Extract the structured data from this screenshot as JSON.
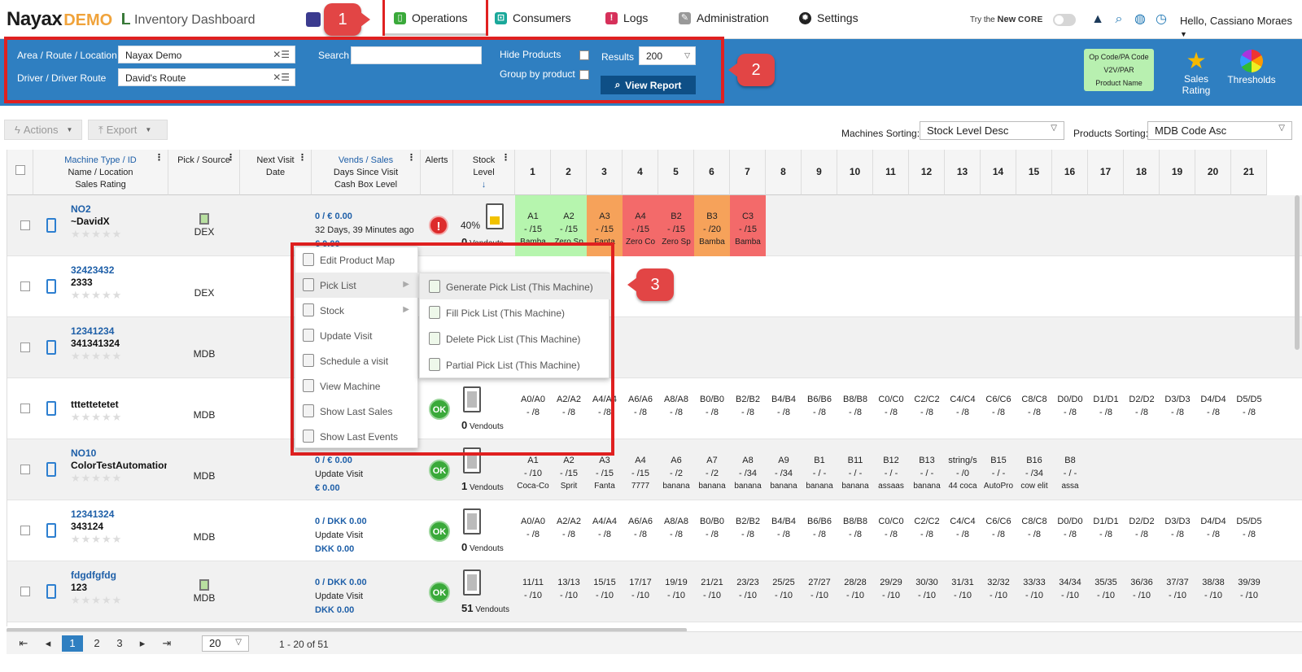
{
  "nav": {
    "logo_main": "Nayax",
    "logo_suffix": "DEMO",
    "page_title": "Inventory Dashboard",
    "tabs": [
      "Operations",
      "Consumers",
      "Logs",
      "Administration",
      "Settings"
    ],
    "try_core_prefix": "Try the",
    "try_core_new": "New",
    "try_core_core": "CORE",
    "greeting": "Hello, Cassiano Moraes"
  },
  "callouts": [
    "1",
    "2",
    "3"
  ],
  "filters": {
    "area_label": "Area / Route / Location",
    "area_value": "Nayax Demo",
    "driver_label": "Driver / Driver Route",
    "driver_value": "David's Route",
    "search_label": "Search",
    "search_value": "",
    "hide_products_label": "Hide Products",
    "group_by_label": "Group by product",
    "results_label": "Results",
    "results_value": "200",
    "view_report": "View Report",
    "opcode_lines": [
      "Op Code/PA Code",
      "V2V/PAR",
      "Product Name"
    ],
    "sales_rating": "Sales Rating",
    "thresholds": "Thresholds"
  },
  "toolbar": {
    "actions": "Actions",
    "export": "Export",
    "machines_sorting_label": "Machines Sorting:",
    "machines_sorting_value": "Stock Level Desc",
    "products_sorting_label": "Products Sorting:",
    "products_sorting_value": "MDB Code Asc"
  },
  "columns": {
    "machine": [
      "Machine Type / ID",
      "Name / Location",
      "Sales Rating"
    ],
    "pick": "Pick / Source",
    "next_visit": [
      "Next Visit",
      "Date"
    ],
    "vends": [
      "Vends / Sales",
      "Days Since Visit",
      "Cash Box Level"
    ],
    "alerts": "Alerts",
    "stock": [
      "Stock",
      "Level"
    ],
    "slots": [
      "1",
      "2",
      "3",
      "4",
      "5",
      "6",
      "7",
      "8",
      "9",
      "10",
      "11",
      "12",
      "13",
      "14",
      "15",
      "16",
      "17",
      "18",
      "19",
      "20",
      "21"
    ]
  },
  "rows": [
    {
      "id": "NO2",
      "name": "~DavidX",
      "source": "DEX",
      "vend1": "0 / € 0.00",
      "vend2": "32 Days, 39 Minutes ago",
      "vend3": "€ 0.00",
      "alert": "!",
      "pct": "40%",
      "vendouts": "0",
      "vendouts_label": "Vendouts",
      "slots": [
        {
          "code": "A1",
          "lvl": "- /15",
          "nm": "Bamba",
          "c": "green"
        },
        {
          "code": "A2",
          "lvl": "- /15",
          "nm": "Zero Sp",
          "c": "green"
        },
        {
          "code": "A3",
          "lvl": "- /15",
          "nm": "Fanta",
          "c": "orange"
        },
        {
          "code": "A4",
          "lvl": "- /15",
          "nm": "Zero Co",
          "c": "red"
        },
        {
          "code": "B2",
          "lvl": "- /15",
          "nm": "Zero Sp",
          "c": "red"
        },
        {
          "code": "B3",
          "lvl": "- /20",
          "nm": "Bamba",
          "c": "orange"
        },
        {
          "code": "C3",
          "lvl": "- /15",
          "nm": "Bamba",
          "c": "red"
        }
      ]
    },
    {
      "id": "32423432",
      "name": "2333",
      "source": "DEX",
      "vend1": "",
      "vend2": "",
      "vend3": "",
      "alert": "",
      "pct": "",
      "vendouts": "",
      "vendouts_label": "",
      "slots": []
    },
    {
      "id": "12341234",
      "name": "341341324",
      "source": "MDB",
      "vend1": "",
      "vend2": "",
      "vend3": "",
      "alert": "",
      "pct": "",
      "vendouts": "",
      "vendouts_label": "",
      "slots": []
    },
    {
      "id": "",
      "name": "tttettetetet",
      "source": "MDB",
      "vend1": "",
      "vend2": "",
      "vend3": "",
      "alert": "OK",
      "pct": "",
      "vendouts": "0",
      "vendouts_label": "Vendouts",
      "slots": [
        {
          "code": "A0/A0",
          "lvl": "- /8",
          "nm": ""
        },
        {
          "code": "A2/A2",
          "lvl": "- /8",
          "nm": ""
        },
        {
          "code": "A4/A4",
          "lvl": "- /8",
          "nm": ""
        },
        {
          "code": "A6/A6",
          "lvl": "- /8",
          "nm": ""
        },
        {
          "code": "A8/A8",
          "lvl": "- /8",
          "nm": ""
        },
        {
          "code": "B0/B0",
          "lvl": "- /8",
          "nm": ""
        },
        {
          "code": "B2/B2",
          "lvl": "- /8",
          "nm": ""
        },
        {
          "code": "B4/B4",
          "lvl": "- /8",
          "nm": ""
        },
        {
          "code": "B6/B6",
          "lvl": "- /8",
          "nm": ""
        },
        {
          "code": "B8/B8",
          "lvl": "- /8",
          "nm": ""
        },
        {
          "code": "C0/C0",
          "lvl": "- /8",
          "nm": ""
        },
        {
          "code": "C2/C2",
          "lvl": "- /8",
          "nm": ""
        },
        {
          "code": "C4/C4",
          "lvl": "- /8",
          "nm": ""
        },
        {
          "code": "C6/C6",
          "lvl": "- /8",
          "nm": ""
        },
        {
          "code": "C8/C8",
          "lvl": "- /8",
          "nm": ""
        },
        {
          "code": "D0/D0",
          "lvl": "- /8",
          "nm": ""
        },
        {
          "code": "D1/D1",
          "lvl": "- /8",
          "nm": ""
        },
        {
          "code": "D2/D2",
          "lvl": "- /8",
          "nm": ""
        },
        {
          "code": "D3/D3",
          "lvl": "- /8",
          "nm": ""
        },
        {
          "code": "D4/D4",
          "lvl": "- /8",
          "nm": ""
        },
        {
          "code": "D5/D5",
          "lvl": "- /8",
          "nm": ""
        }
      ]
    },
    {
      "id": "NO10",
      "name": "ColorTestAutomation",
      "source": "MDB",
      "vend1": "0 / € 0.00",
      "vend2": "Update Visit",
      "vend3": "€ 0.00",
      "alert": "OK",
      "pct": "",
      "vendouts": "1",
      "vendouts_label": "Vendouts",
      "slots": [
        {
          "code": "A1",
          "lvl": "- /10",
          "nm": "Coca-Co"
        },
        {
          "code": "A2",
          "lvl": "- /15",
          "nm": "Sprit"
        },
        {
          "code": "A3",
          "lvl": "- /15",
          "nm": "Fanta"
        },
        {
          "code": "A4",
          "lvl": "- /15",
          "nm": "7777"
        },
        {
          "code": "A6",
          "lvl": "- /2",
          "nm": "banana"
        },
        {
          "code": "A7",
          "lvl": "- /2",
          "nm": "banana"
        },
        {
          "code": "A8",
          "lvl": "- /34",
          "nm": "banana"
        },
        {
          "code": "A9",
          "lvl": "- /34",
          "nm": "banana"
        },
        {
          "code": "B1",
          "lvl": "- / -",
          "nm": "banana"
        },
        {
          "code": "B11",
          "lvl": "- / -",
          "nm": "banana"
        },
        {
          "code": "B12",
          "lvl": "- / -",
          "nm": "assaas"
        },
        {
          "code": "B13",
          "lvl": "- / -",
          "nm": "banana"
        },
        {
          "code": "string/s",
          "lvl": "- /0",
          "nm": "44 coca"
        },
        {
          "code": "B15",
          "lvl": "- / -",
          "nm": "AutoPro"
        },
        {
          "code": "B16",
          "lvl": "- /34",
          "nm": "cow elit"
        },
        {
          "code": "B8",
          "lvl": "- / -",
          "nm": "assa"
        }
      ]
    },
    {
      "id": "12341324",
      "name": "343124",
      "source": "MDB",
      "vend1": "0 / DKK 0.00",
      "vend2": "Update Visit",
      "vend3": "DKK 0.00",
      "alert": "OK",
      "pct": "",
      "vendouts": "0",
      "vendouts_label": "Vendouts",
      "slots": [
        {
          "code": "A0/A0",
          "lvl": "- /8",
          "nm": ""
        },
        {
          "code": "A2/A2",
          "lvl": "- /8",
          "nm": ""
        },
        {
          "code": "A4/A4",
          "lvl": "- /8",
          "nm": ""
        },
        {
          "code": "A6/A6",
          "lvl": "- /8",
          "nm": ""
        },
        {
          "code": "A8/A8",
          "lvl": "- /8",
          "nm": ""
        },
        {
          "code": "B0/B0",
          "lvl": "- /8",
          "nm": ""
        },
        {
          "code": "B2/B2",
          "lvl": "- /8",
          "nm": ""
        },
        {
          "code": "B4/B4",
          "lvl": "- /8",
          "nm": ""
        },
        {
          "code": "B6/B6",
          "lvl": "- /8",
          "nm": ""
        },
        {
          "code": "B8/B8",
          "lvl": "- /8",
          "nm": ""
        },
        {
          "code": "C0/C0",
          "lvl": "- /8",
          "nm": ""
        },
        {
          "code": "C2/C2",
          "lvl": "- /8",
          "nm": ""
        },
        {
          "code": "C4/C4",
          "lvl": "- /8",
          "nm": ""
        },
        {
          "code": "C6/C6",
          "lvl": "- /8",
          "nm": ""
        },
        {
          "code": "C8/C8",
          "lvl": "- /8",
          "nm": ""
        },
        {
          "code": "D0/D0",
          "lvl": "- /8",
          "nm": ""
        },
        {
          "code": "D1/D1",
          "lvl": "- /8",
          "nm": ""
        },
        {
          "code": "D2/D2",
          "lvl": "- /8",
          "nm": ""
        },
        {
          "code": "D3/D3",
          "lvl": "- /8",
          "nm": ""
        },
        {
          "code": "D4/D4",
          "lvl": "- /8",
          "nm": ""
        },
        {
          "code": "D5/D5",
          "lvl": "- /8",
          "nm": ""
        }
      ]
    },
    {
      "id": "fdgdfgfdg",
      "name": "123",
      "source": "MDB",
      "vend1": "0 / DKK 0.00",
      "vend2": "Update Visit",
      "vend3": "DKK 0.00",
      "alert": "OK",
      "pct": "",
      "vendouts": "51",
      "vendouts_label": "Vendouts",
      "slots": [
        {
          "code": "11/11",
          "lvl": "- /10",
          "nm": ""
        },
        {
          "code": "13/13",
          "lvl": "- /10",
          "nm": ""
        },
        {
          "code": "15/15",
          "lvl": "- /10",
          "nm": ""
        },
        {
          "code": "17/17",
          "lvl": "- /10",
          "nm": ""
        },
        {
          "code": "19/19",
          "lvl": "- /10",
          "nm": ""
        },
        {
          "code": "21/21",
          "lvl": "- /10",
          "nm": ""
        },
        {
          "code": "23/23",
          "lvl": "- /10",
          "nm": ""
        },
        {
          "code": "25/25",
          "lvl": "- /10",
          "nm": ""
        },
        {
          "code": "27/27",
          "lvl": "- /10",
          "nm": ""
        },
        {
          "code": "28/28",
          "lvl": "- /10",
          "nm": ""
        },
        {
          "code": "29/29",
          "lvl": "- /10",
          "nm": ""
        },
        {
          "code": "30/30",
          "lvl": "- /10",
          "nm": ""
        },
        {
          "code": "31/31",
          "lvl": "- /10",
          "nm": ""
        },
        {
          "code": "32/32",
          "lvl": "- /10",
          "nm": ""
        },
        {
          "code": "33/33",
          "lvl": "- /10",
          "nm": ""
        },
        {
          "code": "34/34",
          "lvl": "- /10",
          "nm": ""
        },
        {
          "code": "35/35",
          "lvl": "- /10",
          "nm": ""
        },
        {
          "code": "36/36",
          "lvl": "- /10",
          "nm": ""
        },
        {
          "code": "37/37",
          "lvl": "- /10",
          "nm": ""
        },
        {
          "code": "38/38",
          "lvl": "- /10",
          "nm": ""
        },
        {
          "code": "39/39",
          "lvl": "- /10",
          "nm": ""
        }
      ]
    }
  ],
  "context_menu": {
    "items": [
      "Edit Product Map",
      "Pick List",
      "Stock",
      "Update Visit",
      "Schedule a visit",
      "View Machine",
      "Show Last Sales",
      "Show Last Events"
    ],
    "submenu": [
      "Generate Pick List (This Machine)",
      "Fill Pick List (This Machine)",
      "Delete Pick List (This Machine)",
      "Partial Pick List (This Machine)"
    ]
  },
  "pager": {
    "pages": [
      "1",
      "2",
      "3"
    ],
    "page_size": "20",
    "info": "1 - 20 of 51"
  },
  "colors": {
    "accent_blue": "#2f7fc1",
    "callout_red": "#e24545",
    "slot_green": "#b6f5ae",
    "slot_orange": "#f6a25a",
    "slot_red": "#f36a6a"
  }
}
